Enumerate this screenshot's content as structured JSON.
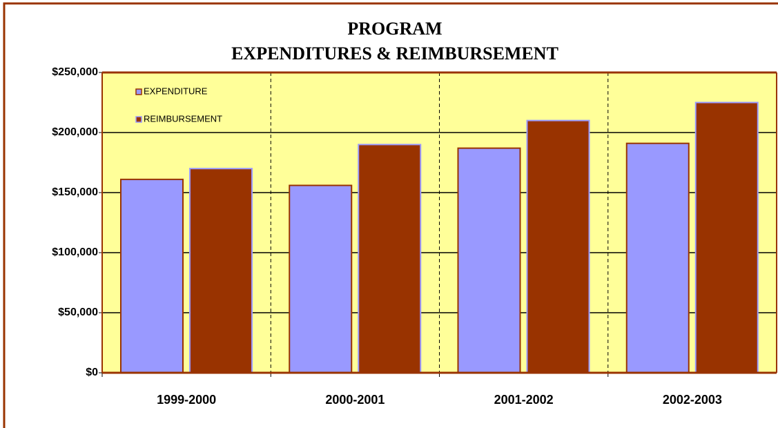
{
  "chart_data": {
    "type": "bar",
    "title": [
      "PROGRAM",
      "EXPENDITURES & REIMBURSEMENT"
    ],
    "categories": [
      "1999-2000",
      "2000-2001",
      "2001-2002",
      "2002-2003"
    ],
    "series": [
      {
        "name": "EXPENDITURE",
        "color": "#9999ff",
        "border": "#993300",
        "values": [
          161000,
          156000,
          187000,
          191000
        ]
      },
      {
        "name": "REIMBURSEMENT",
        "color": "#993300",
        "border": "#9999ff",
        "values": [
          170000,
          190000,
          210000,
          225000
        ]
      }
    ],
    "ylim": [
      0,
      250000
    ],
    "yticks": [
      {
        "value": 0,
        "label": "$0"
      },
      {
        "value": 50000,
        "label": "$50,000"
      },
      {
        "value": 100000,
        "label": "$100,000"
      },
      {
        "value": 150000,
        "label": "$150,000"
      },
      {
        "value": 200000,
        "label": "$200,000"
      },
      {
        "value": 250000,
        "label": "$250,000"
      }
    ],
    "grid": true,
    "legend": "top-left"
  }
}
